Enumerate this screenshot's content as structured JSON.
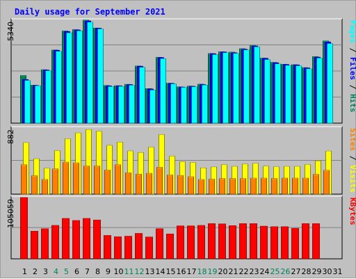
{
  "title": "Daily usage for September 2021",
  "colors": {
    "frame_bg": "#c0c0c0",
    "panel_bg": "#c0c0c0",
    "hits": "#00805c",
    "files": "#0000ff",
    "pages": "#00ffff",
    "visits": "#ffff00",
    "sites": "#ff8000",
    "kbytes": "#ff0000",
    "weekend_day": "#00805c",
    "weekday_day": "#000000"
  },
  "chart_data": [
    {
      "type": "bar",
      "panel": "hits-files-pages",
      "max_label": "5340",
      "ylim": [
        0,
        5340
      ],
      "legend": [
        {
          "text": "Pages",
          "color": "#00ffff"
        },
        {
          "text": " / ",
          "color": "#000000"
        },
        {
          "text": "Files",
          "color": "#0000ff"
        },
        {
          "text": " / ",
          "color": "#000000"
        },
        {
          "text": "Hits",
          "color": "#00805c"
        }
      ],
      "series": [
        {
          "name": "Hits",
          "values": [
            2470,
            1970,
            2770,
            3790,
            4780,
            4850,
            5340,
            4930,
            1950,
            1940,
            2010,
            2960,
            1790,
            3410,
            2070,
            1880,
            1920,
            2020,
            3610,
            3700,
            3680,
            3860,
            4020,
            3370,
            3150,
            3050,
            3030,
            2880,
            3450,
            4260
          ]
        },
        {
          "name": "Files",
          "values": [
            2260,
            1950,
            2750,
            3780,
            4750,
            4830,
            5300,
            4920,
            1930,
            1930,
            2000,
            2950,
            1770,
            3400,
            2060,
            1870,
            1910,
            2000,
            3600,
            3690,
            3650,
            3830,
            4000,
            3360,
            3130,
            3040,
            3020,
            2860,
            3420,
            4210
          ]
        },
        {
          "name": "Pages",
          "values": [
            2210,
            1930,
            2710,
            3720,
            4680,
            4780,
            5230,
            4880,
            1890,
            1900,
            1960,
            2890,
            1710,
            3340,
            2030,
            1850,
            1880,
            1970,
            3550,
            3650,
            3610,
            3790,
            3950,
            3290,
            3070,
            2990,
            2970,
            2810,
            3370,
            4120
          ]
        }
      ]
    },
    {
      "type": "bar",
      "panel": "sites-visits",
      "max_label": "882",
      "ylim": [
        0,
        882
      ],
      "legend": [
        {
          "text": "Sites",
          "color": "#ff8000"
        },
        {
          "text": " / ",
          "color": "#000000"
        },
        {
          "text": "Visits",
          "color": "#ffff00"
        }
      ],
      "series": [
        {
          "name": "Visits",
          "values": [
            686,
            471,
            344,
            577,
            737,
            815,
            860,
            837,
            649,
            691,
            574,
            553,
            625,
            794,
            504,
            431,
            420,
            349,
            361,
            391,
            369,
            399,
            409,
            371,
            364,
            369,
            369,
            393,
            442,
            573
          ]
        },
        {
          "name": "Sites",
          "values": [
            391,
            244,
            194,
            336,
            425,
            415,
            374,
            374,
            320,
            391,
            284,
            266,
            276,
            357,
            255,
            248,
            231,
            194,
            199,
            207,
            207,
            207,
            212,
            212,
            207,
            212,
            212,
            212,
            263,
            317
          ]
        }
      ]
    },
    {
      "type": "bar",
      "panel": "kbytes",
      "max_label": "105059",
      "ylim": [
        0,
        105059
      ],
      "legend": [
        {
          "text": "KBytes",
          "color": "#ff0000"
        }
      ],
      "series": [
        {
          "name": "KBytes",
          "values": [
            105059,
            47300,
            51500,
            57200,
            69200,
            65600,
            69200,
            66500,
            40000,
            37800,
            38700,
            43500,
            37300,
            51500,
            42600,
            56400,
            56400,
            57200,
            60300,
            59800,
            56800,
            60300,
            60300,
            55900,
            55000,
            55000,
            52200,
            60300,
            60300,
            0
          ]
        }
      ]
    }
  ],
  "days": [
    "1",
    "2",
    "3",
    "4",
    "5",
    "6",
    "7",
    "8",
    "9",
    "10",
    "11",
    "12",
    "13",
    "14",
    "15",
    "16",
    "17",
    "18",
    "19",
    "20",
    "21",
    "22",
    "23",
    "24",
    "25",
    "26",
    "27",
    "28",
    "29",
    "30",
    "31"
  ],
  "weekend_days": [
    "4",
    "5",
    "11",
    "12",
    "18",
    "19",
    "25",
    "26"
  ]
}
